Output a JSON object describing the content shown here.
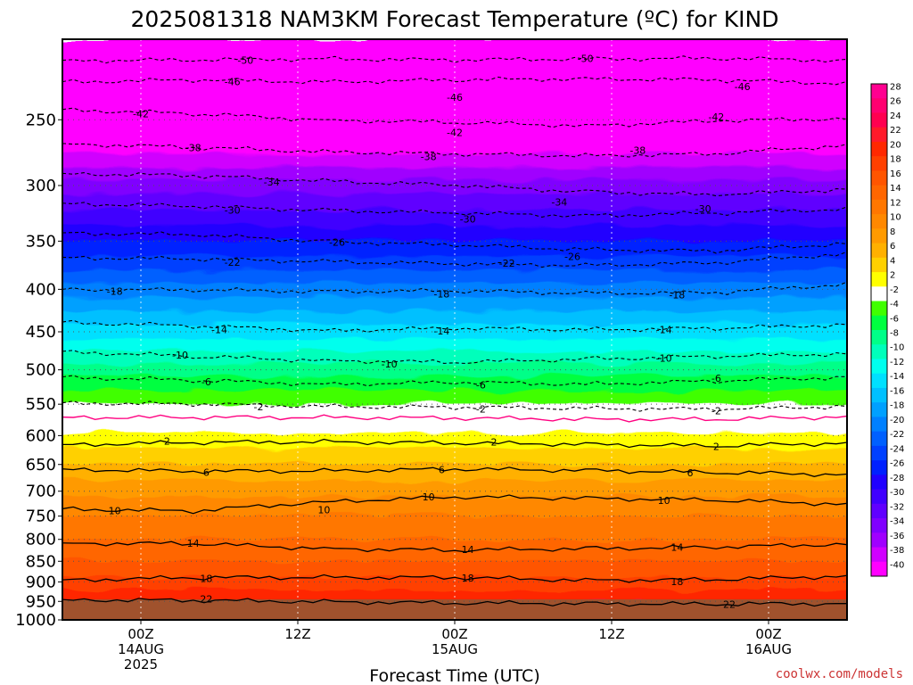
{
  "chart_data": {
    "type": "heatmap",
    "title": "2025081318 NAM3KM Forecast Temperature (ºC) for KIND",
    "xlabel": "Forecast Time (UTC)",
    "ylabel": "",
    "y_axis": {
      "scale": "log-pressure",
      "reversed": true,
      "range_hPa": [
        200,
        1000
      ],
      "ticks": [
        250,
        300,
        350,
        400,
        450,
        500,
        550,
        600,
        650,
        700,
        750,
        800,
        850,
        900,
        950,
        1000
      ]
    },
    "x_axis": {
      "range_hours_from_init": [
        0,
        60
      ],
      "ticks": [
        {
          "hour": 6,
          "lines": [
            "00Z",
            "14AUG",
            "2025"
          ]
        },
        {
          "hour": 18,
          "lines": [
            "12Z"
          ]
        },
        {
          "hour": 30,
          "lines": [
            "00Z",
            "15AUG"
          ]
        },
        {
          "hour": 42,
          "lines": [
            "12Z"
          ]
        },
        {
          "hour": 54,
          "lines": [
            "00Z",
            "16AUG"
          ]
        }
      ],
      "grid": true
    },
    "colorbar": {
      "placement": "right",
      "labels": [
        "28",
        "26",
        "24",
        "22",
        "20",
        "18",
        "16",
        "14",
        "12",
        "10",
        "8",
        "6",
        "4",
        "2",
        "-2",
        "-4",
        "-6",
        "-8",
        "-10",
        "-12",
        "-14",
        "-16",
        "-18",
        "-20",
        "-22",
        "-24",
        "-26",
        "-28",
        "-30",
        "-32",
        "-34",
        "-36",
        "-38",
        "-40"
      ],
      "colors": [
        "#ff0090",
        "#ff0070",
        "#ff0050",
        "#ff1a2a",
        "#ff2800",
        "#ff4000",
        "#ff5500",
        "#ff6600",
        "#ff7700",
        "#ff8800",
        "#ff9a00",
        "#ffb000",
        "#ffd000",
        "#ffff00",
        "#ffffff",
        "#40ff00",
        "#00ff40",
        "#00ff88",
        "#00ffbb",
        "#00ffee",
        "#00e0ff",
        "#00c0ff",
        "#00a0ff",
        "#0080ff",
        "#0060ff",
        "#0040ff",
        "#0020ff",
        "#2000ff",
        "#4000ff",
        "#6000ff",
        "#8000ff",
        "#a000ff",
        "#d000ff",
        "#ff00ff"
      ]
    },
    "temperature_profile": [
      {
        "pressure": 200,
        "temp": -54
      },
      {
        "pressure": 250,
        "temp": -43
      },
      {
        "pressure": 300,
        "temp": -33
      },
      {
        "pressure": 350,
        "temp": -26
      },
      {
        "pressure": 400,
        "temp": -19
      },
      {
        "pressure": 450,
        "temp": -13
      },
      {
        "pressure": 500,
        "temp": -7
      },
      {
        "pressure": 550,
        "temp": -2
      },
      {
        "pressure": 575,
        "temp": 0
      },
      {
        "pressure": 600,
        "temp": 2.5
      },
      {
        "pressure": 650,
        "temp": 6
      },
      {
        "pressure": 700,
        "temp": 9.5
      },
      {
        "pressure": 750,
        "temp": 12
      },
      {
        "pressure": 800,
        "temp": 14
      },
      {
        "pressure": 850,
        "temp": 16
      },
      {
        "pressure": 900,
        "temp": 18.5
      },
      {
        "pressure": 950,
        "temp": 22
      },
      {
        "pressure": 1000,
        "temp": 25
      }
    ],
    "contours": [
      {
        "label": "-50",
        "style": "dashed",
        "y": [
          212,
          212,
          211,
          212,
          211,
          211,
          212
        ],
        "labels_at": [
          [
            14,
            212
          ],
          [
            40,
            211
          ]
        ]
      },
      {
        "label": "-46",
        "style": "dashed",
        "y": [
          225,
          224,
          225,
          224,
          223,
          224,
          226
        ],
        "labels_at": [
          [
            13,
            225
          ],
          [
            30,
            235
          ],
          [
            52,
            228
          ]
        ]
      },
      {
        "label": "-42",
        "style": "dashed",
        "y": [
          243,
          246,
          250,
          252,
          254,
          251,
          249
        ],
        "labels_at": [
          [
            6,
            246
          ],
          [
            30,
            259
          ],
          [
            50,
            248
          ]
        ]
      },
      {
        "label": "-38",
        "style": "dashed",
        "y": [
          267,
          270,
          273,
          275,
          276,
          275,
          268
        ],
        "labels_at": [
          [
            10,
            270
          ],
          [
            28,
            277
          ],
          [
            44,
            272
          ]
        ]
      },
      {
        "label": "-34",
        "style": "dashed",
        "y": [
          290,
          292,
          296,
          300,
          305,
          308,
          303
        ],
        "labels_at": [
          [
            16,
            297
          ],
          [
            38,
            314
          ]
        ]
      },
      {
        "label": "-30",
        "style": "dashed",
        "y": [
          315,
          318,
          321,
          324,
          326,
          324,
          320
        ],
        "labels_at": [
          [
            13,
            321
          ],
          [
            31,
            329
          ],
          [
            49,
            320
          ]
        ]
      },
      {
        "label": "-26",
        "style": "dashed",
        "y": [
          342,
          344,
          350,
          354,
          358,
          360,
          352
        ],
        "labels_at": [
          [
            21,
            351
          ],
          [
            39,
            365
          ]
        ]
      },
      {
        "label": "-22",
        "style": "dashed",
        "y": [
          366,
          368,
          370,
          373,
          374,
          372,
          362
        ],
        "labels_at": [
          [
            13,
            371
          ],
          [
            34,
            372
          ]
        ]
      },
      {
        "label": "-18",
        "style": "dashed",
        "y": [
          400,
          401,
          402,
          402,
          404,
          404,
          394
        ],
        "labels_at": [
          [
            4,
            402
          ],
          [
            29,
            405
          ],
          [
            47,
            406
          ]
        ]
      },
      {
        "label": "-14",
        "style": "dashed",
        "y": [
          438,
          443,
          448,
          446,
          447,
          446,
          441
        ],
        "labels_at": [
          [
            12,
            447
          ],
          [
            29,
            449
          ],
          [
            46,
            447
          ]
        ]
      },
      {
        "label": "-10",
        "style": "dashed",
        "y": [
          475,
          482,
          487,
          490,
          485,
          482,
          478
        ],
        "labels_at": [
          [
            9,
            480
          ],
          [
            25,
            492
          ],
          [
            46,
            484
          ]
        ]
      },
      {
        "label": "-6",
        "style": "dashed",
        "y": [
          510,
          515,
          520,
          518,
          520,
          516,
          510
        ],
        "labels_at": [
          [
            11,
            517
          ],
          [
            32,
            521
          ],
          [
            50,
            512
          ]
        ]
      },
      {
        "label": "-2",
        "style": "dashed",
        "y": [
          548,
          550,
          553,
          555,
          556,
          558,
          553
        ],
        "labels_at": [
          [
            15,
            554
          ],
          [
            32,
            557
          ],
          [
            50,
            560
          ]
        ]
      },
      {
        "label": "2",
        "style": "solid",
        "y": [
          615,
          612,
          610,
          613,
          614,
          618,
          612
        ],
        "labels_at": [
          [
            8,
            609
          ],
          [
            33,
            611
          ],
          [
            50,
            618
          ]
        ]
      },
      {
        "label": "6",
        "style": "solid",
        "y": [
          658,
          663,
          661,
          659,
          660,
          665,
          668
        ],
        "labels_at": [
          [
            11,
            664
          ],
          [
            29,
            659
          ],
          [
            48,
            665
          ]
        ]
      },
      {
        "label": "10",
        "style": "solid",
        "y": [
          735,
          740,
          720,
          712,
          713,
          718,
          725
        ],
        "labels_at": [
          [
            4,
            739
          ],
          [
            20,
            737
          ],
          [
            28,
            711
          ],
          [
            46,
            718
          ]
        ]
      },
      {
        "label": "14",
        "style": "solid",
        "y": [
          808,
          810,
          820,
          825,
          820,
          818,
          810
        ],
        "labels_at": [
          [
            10,
            808
          ],
          [
            31,
            823
          ],
          [
            47,
            818
          ]
        ]
      },
      {
        "label": "18",
        "style": "solid",
        "y": [
          895,
          890,
          888,
          890,
          895,
          895,
          885
        ],
        "labels_at": [
          [
            11,
            891
          ],
          [
            31,
            890
          ],
          [
            47,
            899
          ]
        ]
      },
      {
        "label": "22",
        "style": "solid",
        "y": [
          945,
          948,
          950,
          955,
          955,
          958,
          955
        ],
        "labels_at": [
          [
            11,
            944
          ],
          [
            51,
            958
          ]
        ]
      }
    ],
    "freezing_line": {
      "color": "#ff0080",
      "y": [
        570,
        571,
        570,
        572,
        573,
        574,
        569
      ]
    }
  },
  "credit": "coolwx.com/models",
  "colors": {
    "ground": "#a0522d",
    "frame": "#000000",
    "grid": "#555555"
  }
}
